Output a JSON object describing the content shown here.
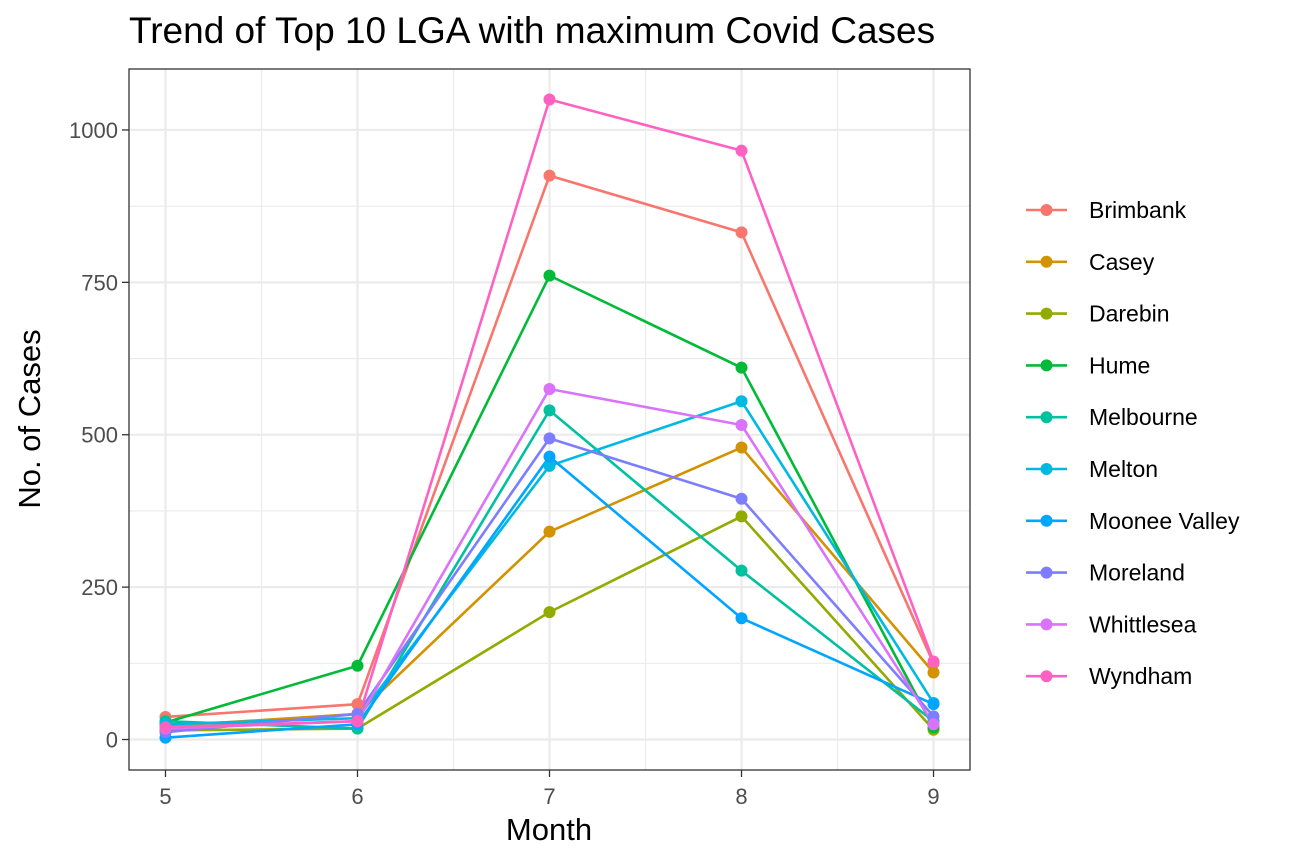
{
  "chart_data": {
    "type": "line",
    "title": "Trend of Top 10 LGA with maximum Covid Cases",
    "xlabel": "Month",
    "ylabel": "No. of Cases",
    "x": [
      5,
      6,
      7,
      8,
      9
    ],
    "xlim": [
      4.81,
      9.19
    ],
    "ylim": [
      -50,
      1100
    ],
    "yticks": [
      0,
      250,
      500,
      750,
      1000
    ],
    "grid": true,
    "legend_position": "right",
    "series": [
      {
        "name": "Brimbank",
        "color": "#F8766D",
        "values": [
          37,
          58,
          925,
          832,
          125
        ]
      },
      {
        "name": "Casey",
        "color": "#D39200",
        "values": [
          22,
          42,
          341,
          479,
          110
        ]
      },
      {
        "name": "Darebin",
        "color": "#93AA00",
        "values": [
          15,
          18,
          209,
          366,
          16
        ]
      },
      {
        "name": "Hume",
        "color": "#00BA38",
        "values": [
          28,
          121,
          761,
          610,
          20
        ]
      },
      {
        "name": "Melbourne",
        "color": "#00C19F",
        "values": [
          30,
          18,
          540,
          277,
          30
        ]
      },
      {
        "name": "Melton",
        "color": "#00B9E3",
        "values": [
          25,
          35,
          449,
          555,
          60
        ]
      },
      {
        "name": "Moonee Valley",
        "color": "#00A5FF",
        "values": [
          3,
          25,
          464,
          199,
          58
        ]
      },
      {
        "name": "Moreland",
        "color": "#7D7DFF",
        "values": [
          12,
          42,
          494,
          395,
          38
        ]
      },
      {
        "name": "Whittlesea",
        "color": "#DB72FB",
        "values": [
          18,
          30,
          575,
          516,
          25
        ]
      },
      {
        "name": "Wyndham",
        "color": "#FF61C3",
        "values": [
          20,
          30,
          1050,
          966,
          128
        ]
      }
    ]
  }
}
